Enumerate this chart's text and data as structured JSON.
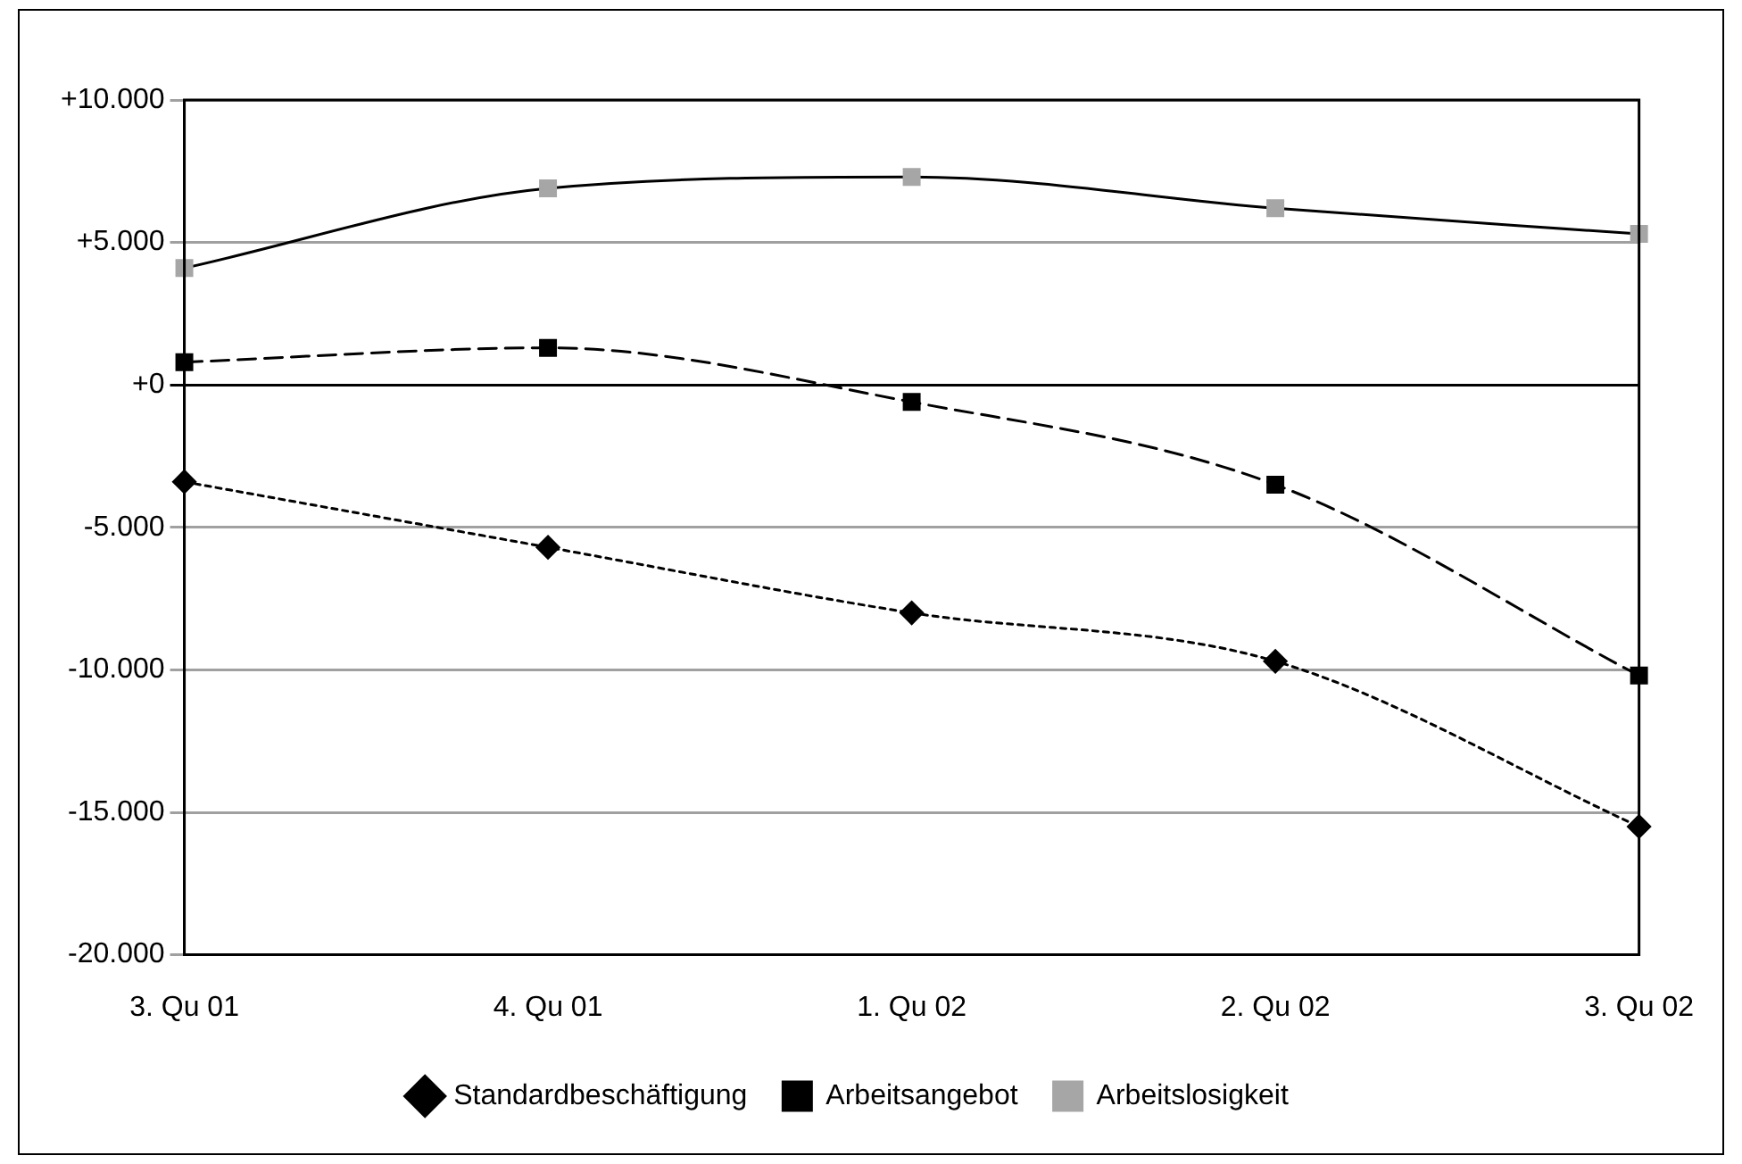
{
  "chart_data": {
    "type": "line",
    "categories": [
      "3. Qu 01",
      "4. Qu 01",
      "1. Qu 02",
      "2. Qu 02",
      "3. Qu 02"
    ],
    "ylim": [
      -20000,
      10000
    ],
    "yticks": [
      {
        "value": -20000,
        "label": "-20.000"
      },
      {
        "value": -15000,
        "label": "-15.000"
      },
      {
        "value": -10000,
        "label": "-10.000"
      },
      {
        "value": -5000,
        "label": "-5.000"
      },
      {
        "value": 0,
        "label": "+0"
      },
      {
        "value": 5000,
        "label": "+5.000"
      },
      {
        "value": 10000,
        "label": "+10.000"
      }
    ],
    "grid": "y",
    "legend": "bottom",
    "series": [
      {
        "name": "Standardbeschäftigung",
        "color": "#000000",
        "marker": "diamond",
        "line_style": "dotted",
        "values": [
          -3400,
          -5700,
          -8000,
          -9700,
          -15500
        ]
      },
      {
        "name": "Arbeitsangebot",
        "color": "#000000",
        "marker": "square",
        "line_style": "dashed",
        "values": [
          800,
          1300,
          -600,
          -3500,
          -10200
        ]
      },
      {
        "name": "Arbeitslosigkeit",
        "color": "#a6a6a6",
        "marker": "square",
        "line_style": "solid",
        "values": [
          4100,
          6900,
          7300,
          6200,
          5300
        ]
      }
    ]
  }
}
